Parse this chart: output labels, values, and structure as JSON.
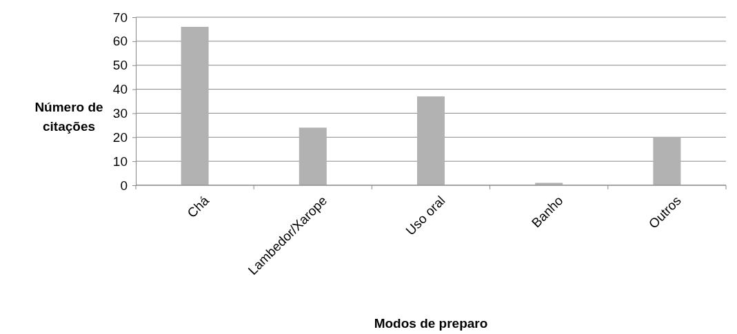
{
  "chart_data": {
    "type": "bar",
    "xlabel": "Modos de preparo",
    "ylabel": "Número de citações",
    "categories": [
      "Chá",
      "Lambedor/Xarope",
      "Uso oral",
      "Banho",
      "Outros"
    ],
    "values": [
      66,
      24,
      37,
      1,
      20
    ],
    "color": "#b2b2b2",
    "ylim": [
      0,
      70
    ],
    "yticks": [
      0,
      10,
      20,
      30,
      40,
      50,
      60,
      70
    ],
    "grid": "y"
  }
}
